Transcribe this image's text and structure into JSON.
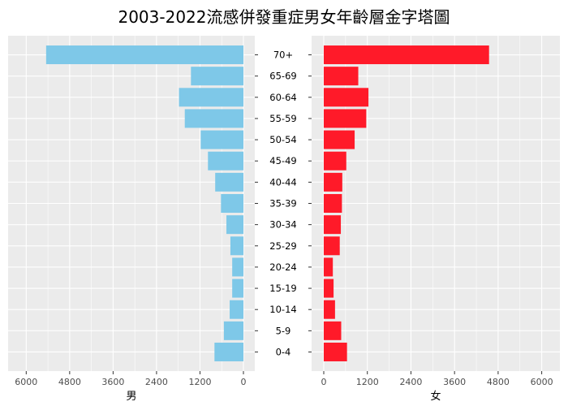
{
  "chart_data": {
    "type": "bar",
    "title": "2003-2022流感併發重症男女年齡層金字塔圖",
    "categories": [
      "70+",
      "65-69",
      "60-64",
      "55-59",
      "50-54",
      "45-49",
      "40-44",
      "35-39",
      "30-34",
      "25-29",
      "20-24",
      "15-19",
      "10-14",
      "5-9",
      "0-4"
    ],
    "series": [
      {
        "name": "男",
        "color": "#7EC8E8",
        "values": [
          5450,
          1450,
          1780,
          1620,
          1180,
          980,
          780,
          620,
          470,
          360,
          310,
          310,
          380,
          540,
          800
        ]
      },
      {
        "name": "女",
        "color": "#FF1A29",
        "values": [
          4550,
          950,
          1230,
          1170,
          850,
          620,
          510,
          500,
          470,
          440,
          250,
          270,
          310,
          480,
          640
        ]
      }
    ],
    "xticks": [
      "6000",
      "4800",
      "3600",
      "2400",
      "1200",
      "0"
    ],
    "xticks_right": [
      "0",
      "1200",
      "2400",
      "3600",
      "4800",
      "6000"
    ],
    "xlim": [
      0,
      6500
    ],
    "xlabel_left": "男",
    "xlabel_right": "女",
    "grid": true
  }
}
